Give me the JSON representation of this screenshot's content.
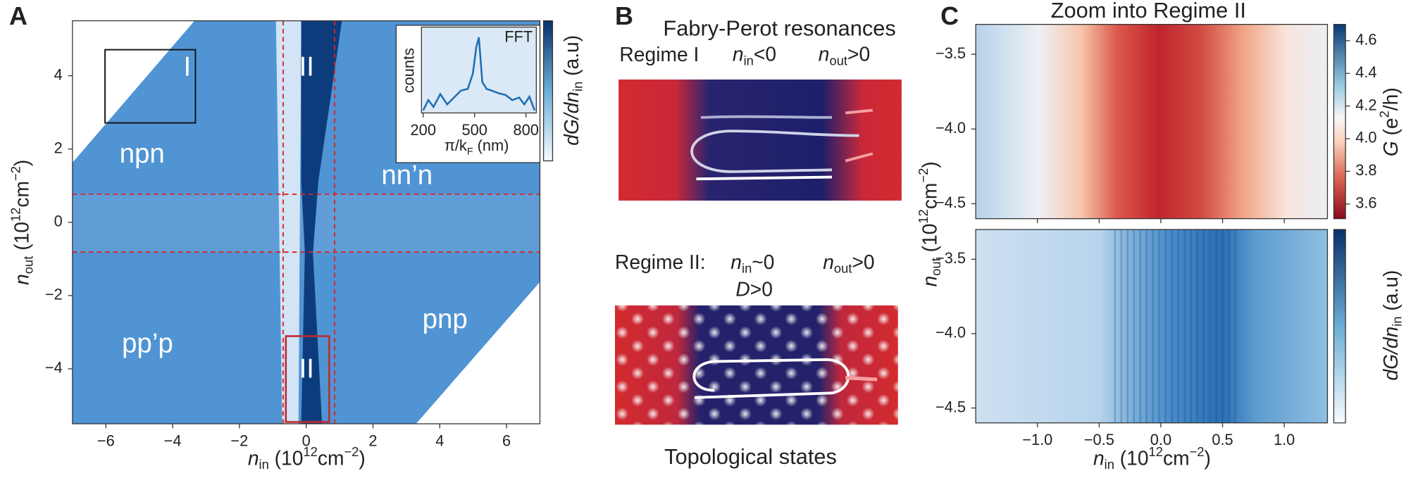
{
  "panel_a": {
    "letter": "A",
    "x_label": [
      "n",
      "in",
      " (10",
      "12",
      "cm",
      "−2",
      ")"
    ],
    "y_label": [
      "n",
      "out",
      " (10",
      "12",
      "cm",
      "−2",
      ")"
    ],
    "xlim": [
      -7,
      7
    ],
    "ylim": [
      -5.5,
      5.5
    ],
    "xticks": [
      {
        "value": -6,
        "label": "−6"
      },
      {
        "value": -4,
        "label": "−4"
      },
      {
        "value": -2,
        "label": "−2"
      },
      0,
      2,
      4,
      6
    ],
    "yticks": [
      {
        "value": -4,
        "label": "−4"
      },
      {
        "value": -2,
        "label": "−2"
      },
      0,
      2,
      4
    ],
    "colorbar_label": [
      "dG/dn",
      "in",
      " (a.u)"
    ],
    "regions": [
      "npn",
      "nn’n",
      "pp’p",
      "pnp"
    ],
    "boxes": [
      "I",
      "II",
      "II"
    ],
    "inset": {
      "title": "FFT",
      "y_label": "counts",
      "x_label": [
        "π/k",
        "F",
        " (nm)"
      ],
      "xlim": [
        190,
        860
      ],
      "ylim": [
        0,
        1
      ],
      "xticks": [
        200,
        500,
        800
      ],
      "color": "#1f6fb5",
      "x": [
        200,
        230,
        260,
        300,
        340,
        380,
        420,
        460,
        490,
        510,
        525,
        545,
        570,
        600,
        640,
        680,
        720,
        760,
        790,
        820,
        850
      ],
      "values": [
        0.03,
        0.15,
        0.07,
        0.22,
        0.1,
        0.18,
        0.26,
        0.28,
        0.46,
        0.77,
        0.88,
        0.36,
        0.28,
        0.26,
        0.23,
        0.21,
        0.15,
        0.18,
        0.1,
        0.19,
        0.03
      ]
    }
  },
  "panel_b": {
    "letter": "B",
    "title": "Fabry-Perot resonances",
    "regime_1": {
      "label": "Regime I",
      "n_in": [
        "n",
        "in",
        "<0"
      ],
      "n_out": [
        "n",
        "out",
        ">0"
      ]
    },
    "regime_2": {
      "label": "Regime II:",
      "n_in": [
        "n",
        "in",
        "~0"
      ],
      "n_out": [
        "n",
        "out",
        ">0"
      ],
      "d": [
        "D",
        ">0"
      ]
    },
    "caption": "Topological states"
  },
  "panel_c": {
    "letter": "C",
    "title": "Zoom into Regime II",
    "x_label": [
      "n",
      "in",
      " (10",
      "12",
      "cm",
      "−2",
      ")"
    ],
    "y_label": [
      "n",
      "out",
      " (10",
      "12",
      "cm",
      "−2",
      ")"
    ],
    "xlim": [
      -1.5,
      1.35
    ],
    "xticks": [
      {
        "value": -1.0,
        "label": "−1.0"
      },
      {
        "value": -0.5,
        "label": "−0.5"
      },
      {
        "value": 0.0,
        "label": "0.0"
      },
      0.5,
      {
        "value": 1.0,
        "label": "1.0"
      }
    ],
    "top": {
      "ylim": [
        -4.6,
        -3.3
      ],
      "yticks": [
        {
          "value": -3.5,
          "label": "−3.5"
        },
        {
          "value": -4.0,
          "label": "−4.0"
        },
        {
          "value": -4.5,
          "label": "−4.5"
        }
      ],
      "colorbar_lim": [
        3.51,
        4.7
      ],
      "colorbar_ticks": [
        3.6,
        3.8,
        {
          "value": 4.0,
          "label": "4.0"
        },
        4.2,
        4.4,
        4.6
      ],
      "colorbar_label": [
        "G",
        " (e",
        "2",
        "/h)"
      ]
    },
    "bottom": {
      "ylim": [
        -4.6,
        -3.3
      ],
      "yticks": [
        {
          "value": -3.5,
          "label": "−3.5"
        },
        {
          "value": -4.0,
          "label": "−4.0"
        },
        {
          "value": -4.5,
          "label": "−4.5"
        }
      ],
      "colorbar_label": [
        "dG/dn",
        "in",
        " (a.u)"
      ]
    }
  }
}
